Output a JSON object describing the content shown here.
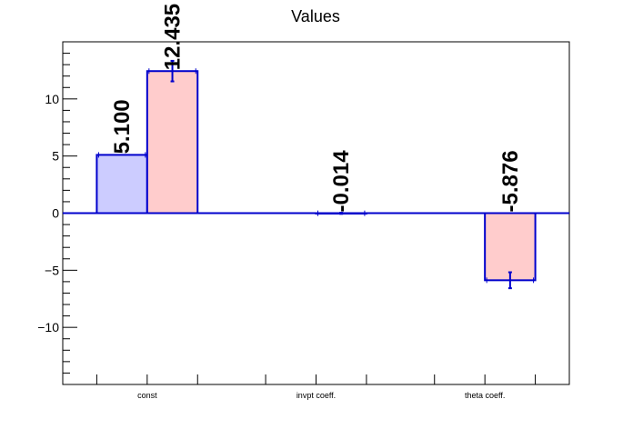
{
  "chart_data": {
    "type": "bar",
    "title": "Values",
    "xlabel": "",
    "ylabel": "",
    "categories": [
      "const",
      "invpt coeff.",
      "theta coeff."
    ],
    "ylim": [
      -15,
      15
    ],
    "yticks": [
      -10,
      -5,
      0,
      5,
      10
    ],
    "grid": false,
    "series": [
      {
        "color_fill": "#ccccff",
        "color_edge": "#0000cc",
        "values": [
          5.1,
          null,
          null
        ],
        "labels": [
          "5.100",
          "",
          ""
        ],
        "errors": [
          0,
          0,
          0
        ]
      },
      {
        "color_fill": "#ffcccc",
        "color_edge": "#0000cc",
        "values": [
          12.435,
          -0.014,
          -5.876
        ],
        "labels": [
          "12.435",
          "-0.014",
          "-5.876"
        ],
        "errors": [
          0.9,
          0.05,
          0.7
        ]
      }
    ]
  }
}
